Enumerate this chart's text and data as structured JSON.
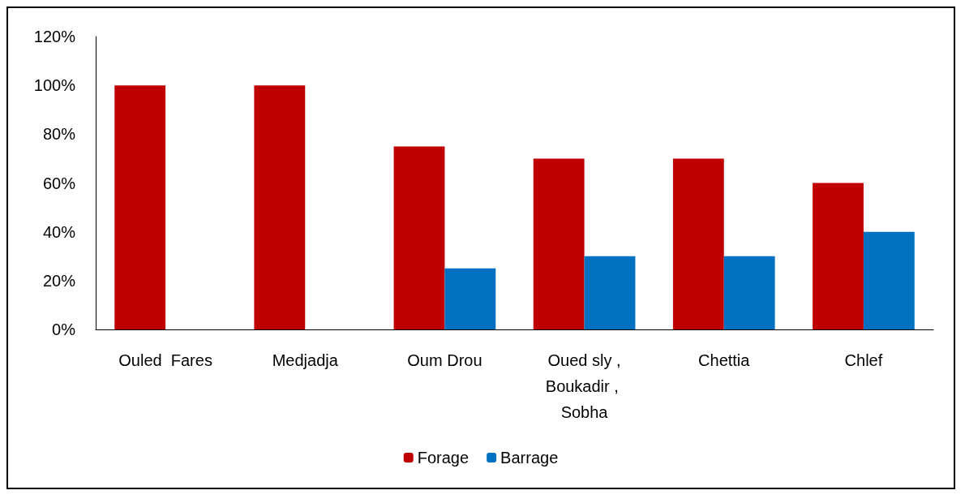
{
  "chart_data": {
    "type": "bar",
    "categories": [
      "Ouled  Fares",
      "Medjadja",
      "Oum Drou",
      "Oued sly ,Boukadir , Sobha",
      "Chettia",
      "Chlef"
    ],
    "series": [
      {
        "name": "Forage",
        "color": "#c00000",
        "values": [
          100,
          100,
          75,
          70,
          70,
          60
        ]
      },
      {
        "name": "Barrage",
        "color": "#0070c0",
        "values": [
          0,
          0,
          25,
          30,
          30,
          40
        ]
      }
    ],
    "ylim": [
      0,
      120
    ],
    "yticks": [
      {
        "value": 0,
        "label": "0%"
      },
      {
        "value": 20,
        "label": "20%"
      },
      {
        "value": 40,
        "label": "40%"
      },
      {
        "value": 60,
        "label": "60%"
      },
      {
        "value": 80,
        "label": "80%"
      },
      {
        "value": 100,
        "label": "100%"
      },
      {
        "value": 120,
        "label": "120%"
      }
    ],
    "grid": false,
    "legend": "bottom"
  }
}
